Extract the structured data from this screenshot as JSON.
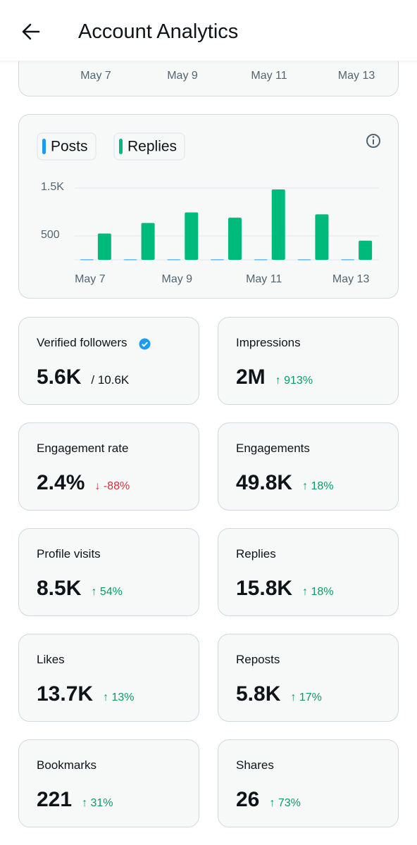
{
  "header": {
    "title": "Account Analytics"
  },
  "top_card": {
    "x_labels": [
      "May 7",
      "May 9",
      "May 11",
      "May 13"
    ]
  },
  "chart_data": {
    "type": "bar",
    "categories": [
      "May 7",
      null,
      "May 9",
      null,
      "May 11",
      null,
      "May 13"
    ],
    "series": [
      {
        "name": "Posts",
        "color": "#1d9bf0",
        "values": [
          10,
          10,
          10,
          10,
          10,
          10,
          10
        ]
      },
      {
        "name": "Replies",
        "color": "#00ba7c",
        "values": [
          550,
          770,
          990,
          880,
          1470,
          950,
          400
        ]
      }
    ],
    "ylim": [
      0,
      1500
    ],
    "yticks": [
      {
        "value": 1500,
        "label": "1.5K"
      },
      500
    ],
    "grid": true
  },
  "stats": [
    {
      "label": "Verified followers",
      "value": "5.6K",
      "total": "/ 10.6K"
    },
    {
      "label": "Impressions",
      "value": "2M",
      "change": "↑ 913%",
      "trend": "up"
    },
    {
      "label": "Engagement rate",
      "value": "2.4%",
      "change": "↓ -88%",
      "trend": "down"
    },
    {
      "label": "Engagements",
      "value": "49.8K",
      "change": "↑ 18%",
      "trend": "up"
    },
    {
      "label": "Profile visits",
      "value": "8.5K",
      "change": "↑ 54%",
      "trend": "up"
    },
    {
      "label": "Replies",
      "value": "15.8K",
      "change": "↑ 18%",
      "trend": "up"
    },
    {
      "label": "Likes",
      "value": "13.7K",
      "change": "↑ 13%",
      "trend": "up"
    },
    {
      "label": "Reposts",
      "value": "5.8K",
      "change": "↑ 17%",
      "trend": "up"
    },
    {
      "label": "Bookmarks",
      "value": "221",
      "change": "↑ 31%",
      "trend": "up"
    },
    {
      "label": "Shares",
      "value": "26",
      "change": "↑ 73%",
      "trend": "up"
    }
  ]
}
